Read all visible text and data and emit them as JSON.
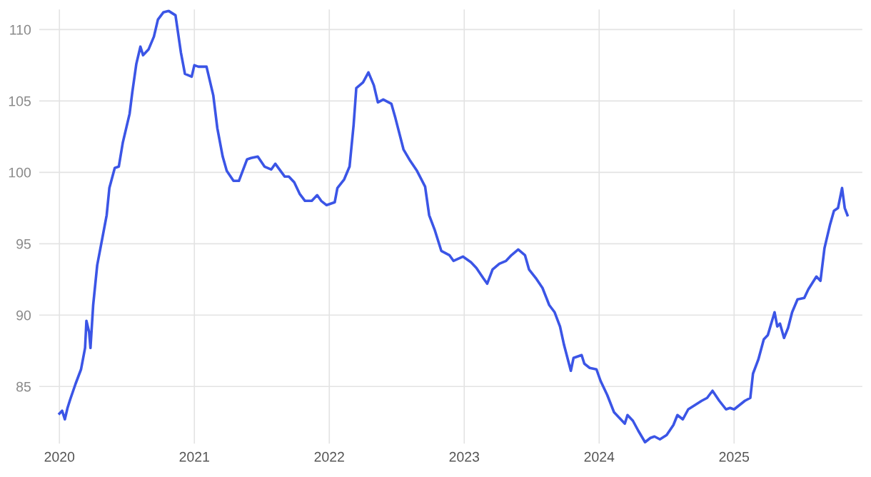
{
  "chart_data": {
    "type": "line",
    "x": [
      2020.0,
      2020.02,
      2020.04,
      2020.06,
      2020.08,
      2020.12,
      2020.16,
      2020.19,
      2020.2,
      2020.22,
      2020.23,
      2020.25,
      2020.28,
      2020.31,
      2020.35,
      2020.37,
      2020.41,
      2020.44,
      2020.47,
      2020.52,
      2020.54,
      2020.57,
      2020.6,
      2020.62,
      2020.66,
      2020.7,
      2020.73,
      2020.77,
      2020.81,
      2020.86,
      2020.9,
      2020.93,
      2020.98,
      2021.0,
      2021.03,
      2021.09,
      2021.14,
      2021.17,
      2021.21,
      2021.24,
      2021.29,
      2021.33,
      2021.39,
      2021.42,
      2021.47,
      2021.52,
      2021.57,
      2021.6,
      2021.67,
      2021.7,
      2021.74,
      2021.78,
      2021.82,
      2021.87,
      2021.91,
      2021.94,
      2021.98,
      2022.04,
      2022.06,
      2022.11,
      2022.15,
      2022.18,
      2022.2,
      2022.25,
      2022.29,
      2022.33,
      2022.36,
      2022.4,
      2022.46,
      2022.49,
      2022.55,
      2022.6,
      2022.65,
      2022.71,
      2022.74,
      2022.78,
      2022.83,
      2022.89,
      2022.92,
      2022.99,
      2023.05,
      2023.09,
      2023.14,
      2023.17,
      2023.21,
      2023.26,
      2023.31,
      2023.35,
      2023.4,
      2023.45,
      2023.48,
      2023.53,
      2023.58,
      2023.63,
      2023.67,
      2023.71,
      2023.74,
      2023.79,
      2023.81,
      2023.87,
      2023.89,
      2023.93,
      2023.98,
      2024.01,
      2024.06,
      2024.11,
      2024.16,
      2024.19,
      2024.21,
      2024.25,
      2024.29,
      2024.34,
      2024.38,
      2024.41,
      2024.45,
      2024.5,
      2024.55,
      2024.58,
      2024.62,
      2024.66,
      2024.71,
      2024.76,
      2024.8,
      2024.84,
      2024.89,
      2024.94,
      2024.97,
      2025.0,
      2025.04,
      2025.08,
      2025.12,
      2025.14,
      2025.18,
      2025.22,
      2025.25,
      2025.3,
      2025.32,
      2025.34,
      2025.37,
      2025.4,
      2025.43,
      2025.47,
      2025.52,
      2025.55,
      2025.61,
      2025.64,
      2025.67,
      2025.71,
      2025.74,
      2025.77,
      2025.8,
      2025.82,
      2025.84
    ],
    "series": [
      {
        "color": "#3b55e6",
        "values": [
          83.1,
          83.3,
          82.7,
          83.5,
          84.1,
          85.2,
          86.2,
          87.7,
          89.6,
          88.8,
          87.7,
          90.7,
          93.5,
          95.0,
          97.0,
          98.9,
          100.3,
          100.4,
          102.1,
          104.1,
          105.6,
          107.6,
          108.8,
          108.2,
          108.6,
          109.5,
          110.7,
          111.2,
          111.3,
          111.0,
          108.4,
          106.9,
          106.7,
          107.5,
          107.4,
          107.4,
          105.4,
          103.1,
          101.1,
          100.1,
          99.4,
          99.4,
          100.9,
          101.0,
          101.1,
          100.4,
          100.2,
          100.6,
          99.7,
          99.7,
          99.3,
          98.5,
          98.0,
          98.0,
          98.4,
          98.0,
          97.7,
          97.9,
          98.9,
          99.5,
          100.4,
          103.3,
          105.9,
          106.3,
          107.0,
          106.1,
          104.9,
          105.1,
          104.8,
          103.8,
          101.6,
          100.8,
          100.1,
          99.0,
          97.0,
          96.0,
          94.5,
          94.2,
          93.8,
          94.1,
          93.7,
          93.3,
          92.6,
          92.2,
          93.2,
          93.6,
          93.8,
          94.2,
          94.6,
          94.2,
          93.2,
          92.6,
          91.9,
          90.7,
          90.2,
          89.2,
          87.9,
          86.1,
          87.0,
          87.2,
          86.6,
          86.3,
          86.2,
          85.4,
          84.4,
          83.2,
          82.7,
          82.4,
          83.0,
          82.6,
          81.9,
          81.1,
          81.4,
          81.5,
          81.3,
          81.6,
          82.3,
          83.0,
          82.7,
          83.4,
          83.7,
          84.0,
          84.2,
          84.7,
          84.0,
          83.4,
          83.5,
          83.4,
          83.7,
          84.0,
          84.2,
          85.9,
          86.9,
          88.3,
          88.6,
          90.2,
          89.2,
          89.4,
          88.4,
          89.1,
          90.2,
          91.1,
          91.2,
          91.8,
          92.7,
          92.4,
          94.7,
          96.3,
          97.3,
          97.5,
          98.9,
          97.5,
          97.0
        ]
      }
    ],
    "xlim": [
      2019.85,
      2025.95
    ],
    "xticks": [
      2020,
      2021,
      2022,
      2023,
      2024,
      2025
    ],
    "ylim": [
      81,
      111.4
    ],
    "yticks": [
      85,
      90,
      95,
      100,
      105,
      110
    ],
    "grid": true
  }
}
